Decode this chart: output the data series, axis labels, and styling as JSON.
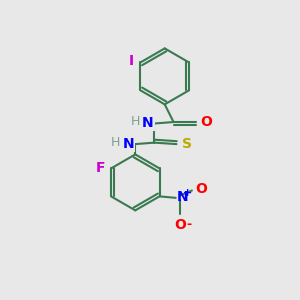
{
  "background_color": "#e8e8e8",
  "bond_color": "#3a7a50",
  "bond_width": 1.5,
  "atom_colors": {
    "I": "#cc00cc",
    "O": "#ff0000",
    "N": "#0000ff",
    "S": "#bbaa00",
    "F": "#cc00cc",
    "H": "#7aa090"
  },
  "font_size": 9,
  "fig_size": [
    3.0,
    3.0
  ],
  "dpi": 100
}
